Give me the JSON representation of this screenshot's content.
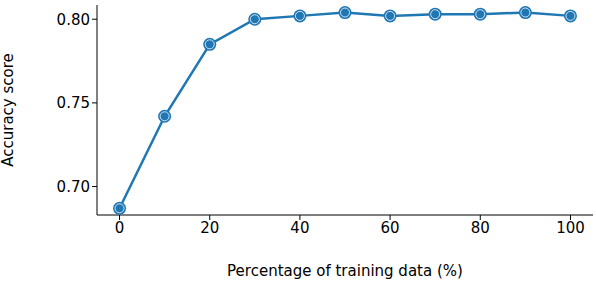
{
  "chart_data": {
    "type": "line",
    "x_label": "Percentage of training data (%)",
    "y_label": "Accuracy score",
    "x": [
      0,
      10,
      20,
      30,
      40,
      50,
      60,
      70,
      80,
      90,
      100
    ],
    "values": [
      0.687,
      0.742,
      0.785,
      0.8,
      0.802,
      0.804,
      0.802,
      0.803,
      0.803,
      0.804,
      0.802
    ],
    "color": "#1f77b4",
    "marker": "o",
    "xlim": [
      -5,
      105
    ],
    "xticks": [
      0,
      20,
      40,
      60,
      80,
      100
    ],
    "ylim": [
      0.683,
      0.8085
    ],
    "yticks": [
      {
        "value": 0.7,
        "label": "0.70"
      },
      0.75,
      {
        "value": 0.8,
        "label": "0.80"
      }
    ],
    "grid": false
  }
}
